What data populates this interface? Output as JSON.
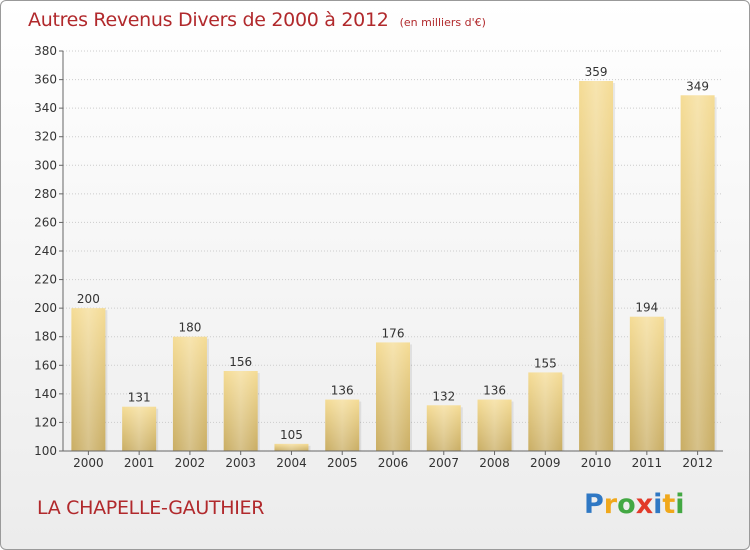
{
  "title": "Autres Revenus Divers de 2000 à 2012",
  "subtitle": "(en milliers d'€)",
  "commune": "LA CHAPELLE-GAUTHIER",
  "logo": {
    "letters": [
      {
        "char": "P",
        "color": "#2f78c4"
      },
      {
        "char": "r",
        "color": "#f0a81c"
      },
      {
        "char": "o",
        "color": "#43a843"
      },
      {
        "char": "x",
        "color": "#e23a2a"
      },
      {
        "char": "i",
        "color": "#2f78c4"
      },
      {
        "char": "t",
        "color": "#f0a81c"
      },
      {
        "char": "i",
        "color": "#43a843"
      }
    ]
  },
  "chart_data": {
    "type": "bar",
    "categories": [
      "2000",
      "2001",
      "2002",
      "2003",
      "2004",
      "2005",
      "2006",
      "2007",
      "2008",
      "2009",
      "2010",
      "2011",
      "2012"
    ],
    "values": [
      200,
      131,
      180,
      156,
      105,
      136,
      176,
      132,
      136,
      155,
      359,
      194,
      349
    ],
    "data_labels": [
      "200",
      "131",
      "180",
      "156",
      "105",
      "136",
      "176",
      "132",
      "136",
      "155",
      "359",
      "194",
      "349"
    ],
    "ylim": [
      100,
      380
    ],
    "yticks": [
      100,
      120,
      140,
      160,
      180,
      200,
      220,
      240,
      260,
      280,
      300,
      320,
      340,
      360,
      380
    ],
    "grid": true,
    "colors": {
      "bar_light": "#f5dc95",
      "bar_dark": "#c9ad63",
      "grid": "#cccccc",
      "axis": "#666666",
      "title": "#b1292c",
      "text": "#333333"
    }
  }
}
